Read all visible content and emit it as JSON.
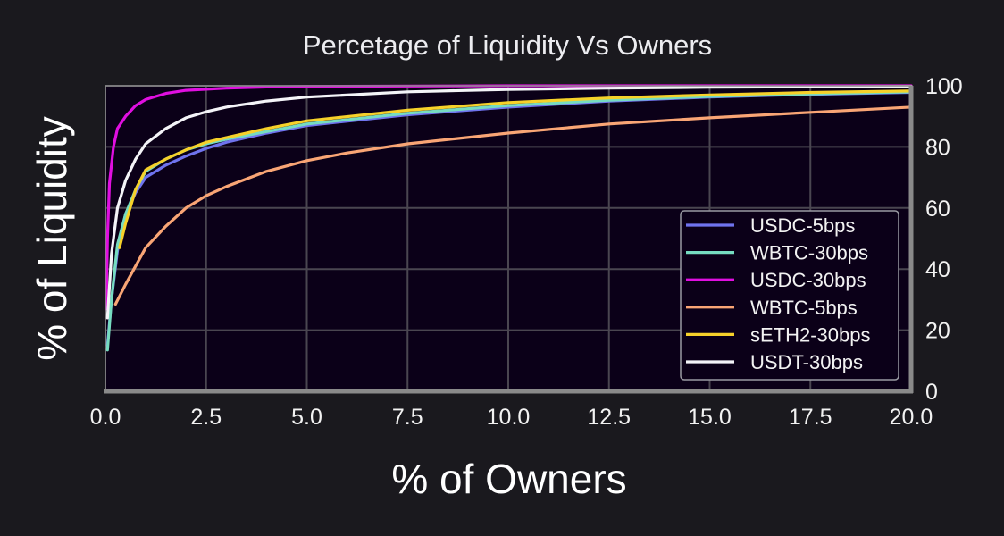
{
  "chart_data": {
    "type": "line",
    "title": "Percetage of Liquidity Vs Owners",
    "xlabel": "% of Owners",
    "ylabel": "% of Liquidity",
    "xlim": [
      0,
      20
    ],
    "ylim": [
      0,
      100
    ],
    "x_ticks": [
      "0.0",
      "2.5",
      "5.0",
      "7.5",
      "10.0",
      "12.5",
      "15.0",
      "17.5",
      "20.0"
    ],
    "y_ticks": [
      "0",
      "20",
      "40",
      "60",
      "80",
      "100"
    ],
    "y_axis_side": "right",
    "grid": true,
    "legend_position": "lower-right",
    "background_color": "#0b0018",
    "series": [
      {
        "name": "USDC-5bps",
        "color": "#6f73ee",
        "points": [
          [
            0.05,
            15
          ],
          [
            0.15,
            30
          ],
          [
            0.3,
            46
          ],
          [
            0.5,
            58
          ],
          [
            0.75,
            65
          ],
          [
            1.0,
            70
          ],
          [
            1.5,
            74
          ],
          [
            2.0,
            77
          ],
          [
            2.5,
            79.5
          ],
          [
            3.0,
            81.5
          ],
          [
            4.0,
            84.5
          ],
          [
            5.0,
            87
          ],
          [
            7.5,
            90.5
          ],
          [
            10.0,
            93
          ],
          [
            12.5,
            95
          ],
          [
            15.0,
            96.3
          ],
          [
            17.5,
            97.2
          ],
          [
            20.0,
            97.8
          ]
        ]
      },
      {
        "name": "WBTC-30bps",
        "color": "#76dcc0",
        "points": [
          [
            0.05,
            13.5
          ],
          [
            0.15,
            30
          ],
          [
            0.3,
            48
          ],
          [
            0.5,
            58
          ],
          [
            0.75,
            66
          ],
          [
            1.0,
            72
          ],
          [
            1.5,
            76
          ],
          [
            2.0,
            79
          ],
          [
            2.5,
            81
          ],
          [
            3.0,
            82.5
          ],
          [
            4.0,
            85
          ],
          [
            5.0,
            87.5
          ],
          [
            7.5,
            91
          ],
          [
            10.0,
            93.5
          ],
          [
            12.5,
            95.3
          ],
          [
            15.0,
            96.5
          ],
          [
            17.5,
            97.3
          ],
          [
            20.0,
            98
          ]
        ]
      },
      {
        "name": "USDC-30bps",
        "color": "#e00fe0",
        "points": [
          [
            0.02,
            27
          ],
          [
            0.05,
            50
          ],
          [
            0.1,
            68
          ],
          [
            0.2,
            80
          ],
          [
            0.3,
            86
          ],
          [
            0.5,
            90
          ],
          [
            0.75,
            93.5
          ],
          [
            1.0,
            95.5
          ],
          [
            1.5,
            97.5
          ],
          [
            2.0,
            98.5
          ],
          [
            3.0,
            99.2
          ],
          [
            4.0,
            99.6
          ],
          [
            5.0,
            99.8
          ],
          [
            10.0,
            100
          ],
          [
            20.0,
            100
          ]
        ]
      },
      {
        "name": "WBTC-5bps",
        "color": "#f9a575",
        "points": [
          [
            0.25,
            28.5
          ],
          [
            0.5,
            35
          ],
          [
            0.75,
            41
          ],
          [
            1.0,
            47
          ],
          [
            1.5,
            54
          ],
          [
            2.0,
            60
          ],
          [
            2.5,
            64
          ],
          [
            3.0,
            67
          ],
          [
            4.0,
            72
          ],
          [
            5.0,
            75.5
          ],
          [
            6.0,
            78
          ],
          [
            7.5,
            81
          ],
          [
            10.0,
            84.5
          ],
          [
            12.5,
            87.5
          ],
          [
            15.0,
            89.5
          ],
          [
            17.5,
            91.3
          ],
          [
            20.0,
            93
          ]
        ]
      },
      {
        "name": "sETH2-30bps",
        "color": "#f6d12a",
        "points": [
          [
            0.35,
            47
          ],
          [
            0.5,
            55
          ],
          [
            0.75,
            66
          ],
          [
            1.0,
            72.5
          ],
          [
            1.5,
            76
          ],
          [
            2.0,
            79
          ],
          [
            2.5,
            81.5
          ],
          [
            3.0,
            83
          ],
          [
            4.0,
            86
          ],
          [
            5.0,
            88.5
          ],
          [
            7.5,
            92
          ],
          [
            10.0,
            94.5
          ],
          [
            12.5,
            96
          ],
          [
            15.0,
            97
          ],
          [
            17.5,
            97.8
          ],
          [
            20.0,
            98.3
          ]
        ]
      },
      {
        "name": "USDT-30bps",
        "color": "#f4f4f8",
        "points": [
          [
            0.05,
            24
          ],
          [
            0.15,
            45
          ],
          [
            0.3,
            60
          ],
          [
            0.5,
            69
          ],
          [
            0.75,
            76
          ],
          [
            1.0,
            81
          ],
          [
            1.5,
            86
          ],
          [
            2.0,
            89.5
          ],
          [
            2.5,
            91.5
          ],
          [
            3.0,
            93
          ],
          [
            4.0,
            95
          ],
          [
            5.0,
            96.3
          ],
          [
            7.5,
            98
          ],
          [
            10.0,
            98.8
          ],
          [
            12.5,
            99.2
          ],
          [
            15.0,
            99.5
          ],
          [
            20.0,
            99.8
          ]
        ]
      }
    ]
  }
}
